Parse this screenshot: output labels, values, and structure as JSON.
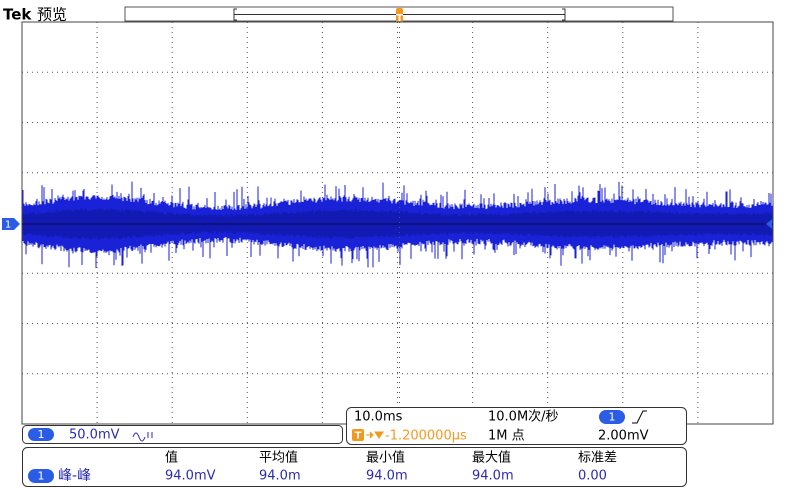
{
  "header": {
    "brand": "Tek",
    "mode": "预览"
  },
  "markers": {
    "trigger": "T",
    "trigger_bottom": "T",
    "channel": "1"
  },
  "channel_box": {
    "channel": "1",
    "scale": "50.0mV"
  },
  "horizontal_box": {
    "time_scale": "10.0ms",
    "sample_rate": "10.0M次/秒",
    "trigger_channel": "1",
    "trigger_level": "2.00mV",
    "trigger_icon": "T",
    "trigger_position": "-1.200000µs",
    "record_length": "1M 点"
  },
  "measurements": {
    "columns": [
      "值",
      "平均值",
      "最小值",
      "最大值",
      "标准差"
    ],
    "rows": [
      {
        "channel": "1",
        "name": "峰-峰",
        "cells": [
          "94.0mV",
          "94.0m",
          "94.0m",
          "94.0m",
          "0.00"
        ]
      }
    ]
  }
}
